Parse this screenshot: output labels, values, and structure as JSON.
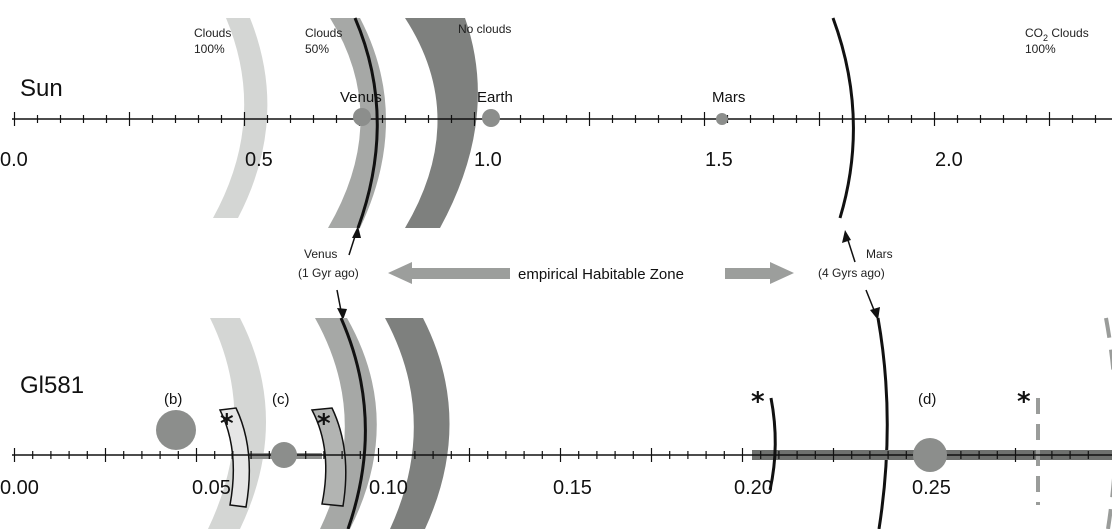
{
  "sun": {
    "name": "Sun",
    "cloud_labels": [
      {
        "line1": "Clouds",
        "line2": "100%"
      },
      {
        "line1": "Clouds",
        "line2": "50%"
      },
      {
        "line1": "No clouds",
        "line2": ""
      }
    ],
    "co2_label": {
      "line1": "CO",
      "sub": "2",
      "rest": " Clouds",
      "line2": "100%"
    },
    "planets": [
      "Venus",
      "Earth",
      "Mars"
    ],
    "ticks": [
      "0.0",
      "0.5",
      "1.0",
      "1.5",
      "2.0"
    ]
  },
  "middle": {
    "venus": {
      "line1": "Venus",
      "line2": "(1 Gyr ago)"
    },
    "ehz_label": "empirical Habitable Zone",
    "mars": {
      "line1": "Mars",
      "line2": "(4 Gyrs ago)"
    }
  },
  "gl581": {
    "name": "Gl581",
    "planets": [
      "(b)",
      "(c)",
      "(d)"
    ],
    "star_symbol": "*",
    "ticks": [
      "0.00",
      "0.05",
      "0.10",
      "0.15",
      "0.20",
      "0.25"
    ]
  },
  "colors": {
    "clouds_100": "#d4d6d4",
    "clouds_50": "#a6a8a6",
    "no_clouds": "#7e807e",
    "planet": "#8c8e8c",
    "arrow": "#9c9e9c",
    "axis": "#111111"
  }
}
